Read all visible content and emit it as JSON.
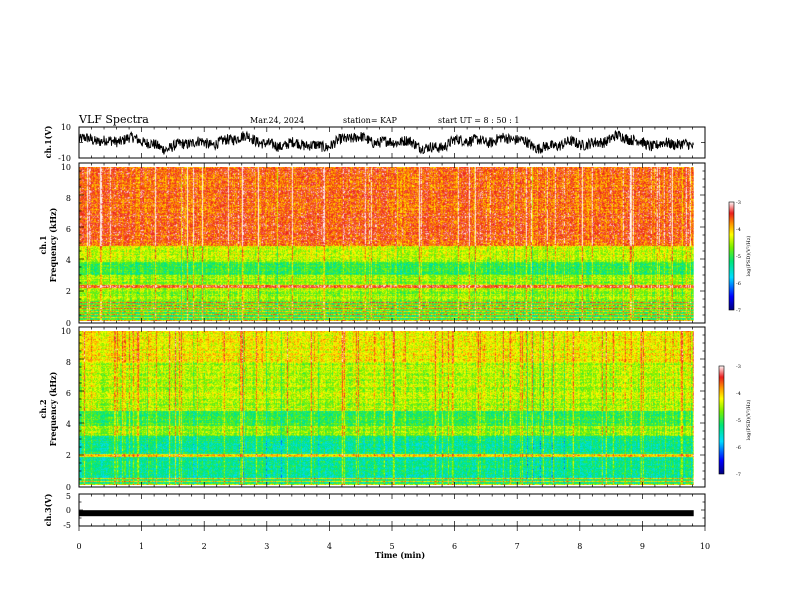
{
  "header": {
    "title": "VLF Spectra",
    "date": "Mar.24, 2024",
    "station": "station= KAP",
    "start": "start UT =  8 : 50 : 1"
  },
  "chart_data": [
    {
      "id": "ch1-voltage",
      "type": "line",
      "ylabel": "ch.1(V)",
      "ylim": [
        -10,
        10
      ],
      "yticks": [
        "10",
        "-10"
      ],
      "xlim": [
        0,
        10
      ],
      "x_extent_min": 9.82,
      "series_description": "noisy waveform roughly between -8 and 8 V"
    },
    {
      "id": "ch1-spectrogram",
      "type": "heatmap",
      "ylabel": "ch.1\nFrequency (kHz)",
      "ylabel_lines": [
        "ch.1",
        "Frequency (kHz)"
      ],
      "ylim": [
        0,
        10
      ],
      "yticks": [
        "0",
        "2",
        "4",
        "6",
        "8",
        "10"
      ],
      "xlim": [
        0,
        10
      ],
      "x_extent_min": 9.82,
      "colorbar": {
        "label": "log(PSD)(V²/Hz)",
        "range": [
          -7,
          -3
        ],
        "ticks": [
          "-3",
          "-4",
          "-5",
          "-6",
          "-7"
        ]
      },
      "bands_khz": [
        {
          "from": 0,
          "to": 0.6,
          "level": -4.6,
          "striped": true
        },
        {
          "from": 0.6,
          "to": 1.3,
          "level": -4.4,
          "striped": true
        },
        {
          "from": 1.3,
          "to": 2.1,
          "level": -4.6,
          "striped": false
        },
        {
          "from": 2.1,
          "to": 2.3,
          "level": -3.5,
          "striped": false
        },
        {
          "from": 2.3,
          "to": 3.0,
          "level": -4.6,
          "striped": false
        },
        {
          "from": 3.0,
          "to": 3.8,
          "level": -5.1,
          "striped": false
        },
        {
          "from": 3.8,
          "to": 4.9,
          "level": -4.4,
          "striped": false
        },
        {
          "from": 4.9,
          "to": 10.0,
          "level": -3.6,
          "striped": false
        }
      ]
    },
    {
      "id": "ch2-spectrogram",
      "type": "heatmap",
      "ylabel": "ch.2\nFrequency (kHz)",
      "ylabel_lines": [
        "ch.2",
        "Frequency (kHz)"
      ],
      "ylim": [
        0,
        10
      ],
      "yticks": [
        "0",
        "2",
        "4",
        "6",
        "8",
        "10"
      ],
      "xlim": [
        0,
        10
      ],
      "x_extent_min": 9.82,
      "colorbar": {
        "label": "log(PSD)(V²/Hz)",
        "range": [
          -7,
          -3
        ],
        "ticks": [
          "-3",
          "-4",
          "-5",
          "-6",
          "-7"
        ]
      },
      "bands_khz": [
        {
          "from": 0,
          "to": 0.5,
          "level": -4.9,
          "striped": true
        },
        {
          "from": 0.5,
          "to": 1.8,
          "level": -5.3,
          "striped": false
        },
        {
          "from": 1.8,
          "to": 2.0,
          "level": -4.0,
          "striped": false
        },
        {
          "from": 2.0,
          "to": 3.2,
          "level": -5.3,
          "striped": false
        },
        {
          "from": 3.2,
          "to": 3.8,
          "level": -4.6,
          "striped": false
        },
        {
          "from": 3.8,
          "to": 4.8,
          "level": -5.0,
          "striped": false
        },
        {
          "from": 4.8,
          "to": 8.0,
          "level": -4.5,
          "striped": false
        },
        {
          "from": 8.0,
          "to": 10.0,
          "level": -4.2,
          "striped": false
        }
      ]
    },
    {
      "id": "ch3-voltage",
      "type": "line",
      "ylabel": "ch.3(V)",
      "ylim": [
        -5,
        5
      ],
      "yticks": [
        "5",
        "0",
        "-5"
      ],
      "xlim": [
        0,
        10
      ],
      "x_extent_min": 9.82,
      "constant_value": -1
    }
  ],
  "x_axis": {
    "label": "Time (min)",
    "ticks": [
      "0",
      "1",
      "2",
      "3",
      "4",
      "5",
      "6",
      "7",
      "8",
      "9",
      "10"
    ]
  }
}
